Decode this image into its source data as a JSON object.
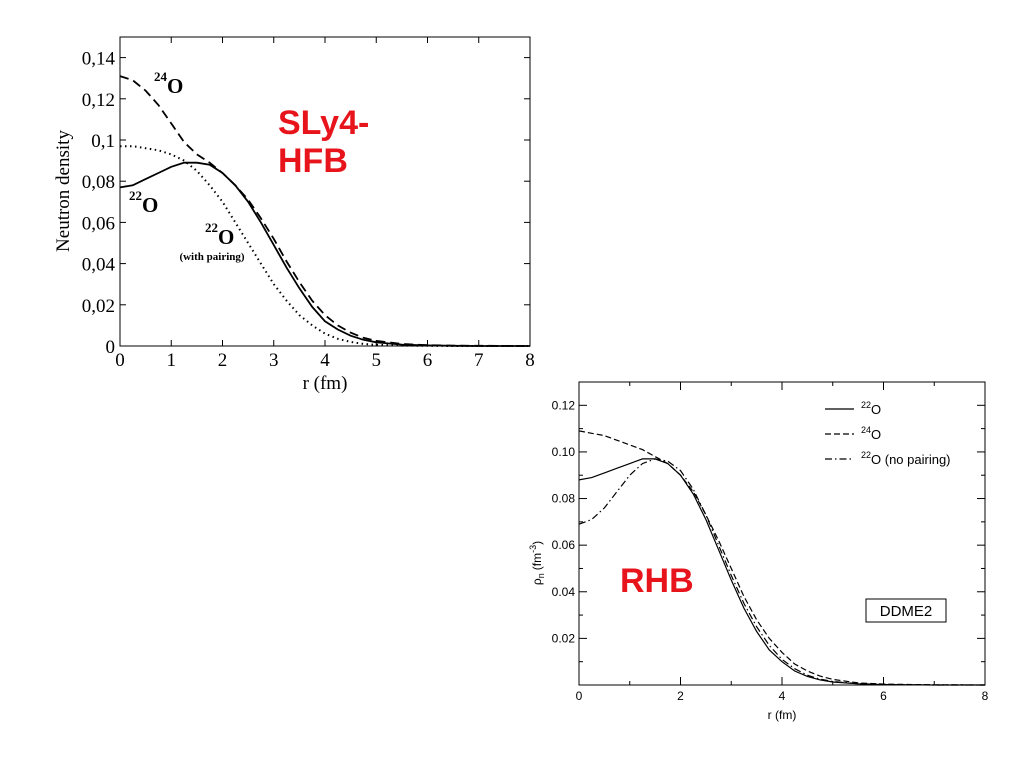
{
  "chart_data": [
    {
      "type": "line",
      "title": "SLy4-\nHFB",
      "xlabel": "r (fm)",
      "ylabel": "Neutron density",
      "xlim": [
        0,
        8
      ],
      "ylim": [
        0,
        0.15
      ],
      "x_ticks": [
        "0",
        "1",
        "2",
        "3",
        "4",
        "5",
        "6",
        "7",
        "8"
      ],
      "y_ticks": [
        "0",
        "0,02",
        "0,04",
        "0,06",
        "0,08",
        "0,1",
        "0,12",
        "0,14"
      ],
      "annotations": [
        {
          "mass": "24",
          "element": "O",
          "note": ""
        },
        {
          "mass": "22",
          "element": "O",
          "note": ""
        },
        {
          "mass": "22",
          "element": "O",
          "note": "(with pairing)"
        }
      ],
      "accent_color": "#e8141b",
      "series": [
        {
          "style": "dashed",
          "x": [
            0,
            0.25,
            0.5,
            0.75,
            1.0,
            1.25,
            1.5,
            1.75,
            2.0,
            2.25,
            2.5,
            2.75,
            3.0,
            3.25,
            3.5,
            3.75,
            4.0,
            4.25,
            4.5,
            4.75,
            5.0,
            5.5,
            6.0,
            6.5,
            7.0,
            8.0
          ],
          "values": [
            0.131,
            0.129,
            0.124,
            0.117,
            0.108,
            0.099,
            0.093,
            0.089,
            0.084,
            0.078,
            0.071,
            0.062,
            0.052,
            0.041,
            0.031,
            0.022,
            0.015,
            0.01,
            0.0065,
            0.004,
            0.0025,
            0.001,
            0.0004,
            0.0002,
            0.0001,
            0.0
          ]
        },
        {
          "style": "solid",
          "x": [
            0,
            0.25,
            0.5,
            0.75,
            1.0,
            1.25,
            1.5,
            1.75,
            2.0,
            2.25,
            2.5,
            2.75,
            3.0,
            3.25,
            3.5,
            3.75,
            4.0,
            4.25,
            4.5,
            4.75,
            5.0,
            5.5,
            6.0,
            6.5,
            7.0,
            8.0
          ],
          "values": [
            0.077,
            0.078,
            0.081,
            0.084,
            0.087,
            0.089,
            0.089,
            0.088,
            0.084,
            0.078,
            0.07,
            0.06,
            0.049,
            0.038,
            0.028,
            0.019,
            0.012,
            0.008,
            0.005,
            0.003,
            0.0018,
            0.0007,
            0.0003,
            0.0001,
            0.0,
            0.0
          ]
        },
        {
          "style": "dotted",
          "x": [
            0,
            0.25,
            0.5,
            0.75,
            1.0,
            1.25,
            1.5,
            1.75,
            2.0,
            2.25,
            2.5,
            2.75,
            3.0,
            3.25,
            3.5,
            3.75,
            4.0,
            4.25,
            4.5,
            4.75,
            5.0,
            5.5,
            6.0,
            6.5,
            7.0,
            8.0
          ],
          "values": [
            0.097,
            0.097,
            0.096,
            0.095,
            0.093,
            0.09,
            0.085,
            0.078,
            0.07,
            0.06,
            0.05,
            0.04,
            0.03,
            0.022,
            0.015,
            0.01,
            0.006,
            0.0035,
            0.002,
            0.001,
            0.0006,
            0.0002,
            0.0001,
            0.0,
            0.0,
            0.0
          ]
        }
      ]
    },
    {
      "type": "line",
      "title": "RHB",
      "xlabel": "r (fm)",
      "ylabel": "ρ",
      "ylabel_sub": "n",
      "ylabel_unit": "(fm",
      "ylabel_unit_sup": "-3",
      "ylabel_unit_close": ")",
      "xlim": [
        0,
        8
      ],
      "ylim": [
        0,
        0.13
      ],
      "x_ticks": [
        "0",
        "2",
        "4",
        "6",
        "8"
      ],
      "y_ticks": [
        "0.02",
        "0.04",
        "0.06",
        "0.08",
        "0.10",
        "0.12"
      ],
      "box_label": "DDME2",
      "accent_color": "#e8141b",
      "legend": [
        {
          "mass": "22",
          "element": "O",
          "note": "",
          "style": "solid"
        },
        {
          "mass": "24",
          "element": "O",
          "note": "",
          "style": "dashed"
        },
        {
          "mass": "22",
          "element": "O",
          "note": " (no pairing)",
          "style": "dashdot"
        }
      ],
      "series": [
        {
          "style": "solid",
          "x": [
            0,
            0.25,
            0.5,
            0.75,
            1.0,
            1.25,
            1.5,
            1.75,
            2.0,
            2.25,
            2.5,
            2.75,
            3.0,
            3.25,
            3.5,
            3.75,
            4.0,
            4.25,
            4.5,
            4.75,
            5.0,
            5.5,
            6.0,
            6.5,
            7.0,
            8.0
          ],
          "values": [
            0.088,
            0.089,
            0.091,
            0.093,
            0.095,
            0.097,
            0.097,
            0.095,
            0.09,
            0.082,
            0.071,
            0.058,
            0.045,
            0.033,
            0.023,
            0.015,
            0.01,
            0.006,
            0.0037,
            0.0022,
            0.0013,
            0.0005,
            0.0002,
            0.0001,
            0.0,
            0.0
          ]
        },
        {
          "style": "dashed",
          "x": [
            0,
            0.25,
            0.5,
            0.75,
            1.0,
            1.25,
            1.5,
            1.75,
            2.0,
            2.25,
            2.5,
            2.75,
            3.0,
            3.25,
            3.5,
            3.75,
            4.0,
            4.25,
            4.5,
            4.75,
            5.0,
            5.5,
            6.0,
            6.5,
            7.0,
            8.0
          ],
          "values": [
            0.109,
            0.108,
            0.107,
            0.105,
            0.103,
            0.101,
            0.098,
            0.095,
            0.09,
            0.083,
            0.073,
            0.062,
            0.05,
            0.038,
            0.028,
            0.02,
            0.014,
            0.009,
            0.006,
            0.0038,
            0.0024,
            0.0009,
            0.0004,
            0.0002,
            0.0001,
            0.0
          ]
        },
        {
          "style": "dashdot",
          "x": [
            0,
            0.25,
            0.5,
            0.75,
            1.0,
            1.25,
            1.5,
            1.75,
            2.0,
            2.25,
            2.5,
            2.75,
            3.0,
            3.25,
            3.5,
            3.75,
            4.0,
            4.25,
            4.5,
            4.75,
            5.0,
            5.5,
            6.0,
            6.5,
            7.0,
            8.0
          ],
          "values": [
            0.069,
            0.071,
            0.076,
            0.083,
            0.09,
            0.095,
            0.097,
            0.096,
            0.092,
            0.084,
            0.073,
            0.06,
            0.047,
            0.035,
            0.025,
            0.017,
            0.011,
            0.007,
            0.0042,
            0.0025,
            0.0015,
            0.0006,
            0.0002,
            0.0001,
            0.0,
            0.0
          ]
        }
      ]
    }
  ]
}
